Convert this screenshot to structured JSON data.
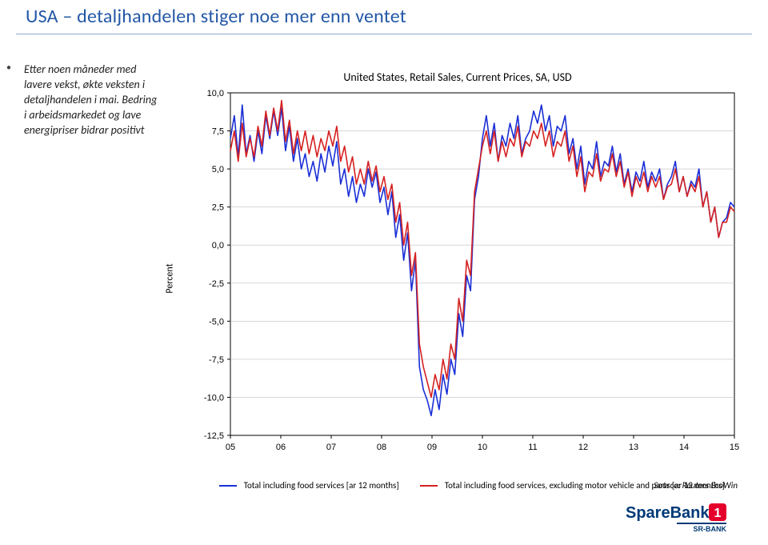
{
  "title": "USA – detaljhandelen stiger noe mer enn ventet",
  "sidebar_text": "Etter noen måneder med lavere vekst, økte veksten i detaljhandelen i mai. Bedring i arbeidsmarkedet og lave energipriser bidrar positivt",
  "chart": {
    "type": "line",
    "title": "United States, Retail Sales, Current Prices, SA, USD",
    "yaxis_label": "Percent",
    "ylim": [
      -12.5,
      10.0
    ],
    "ytick_step": 2.5,
    "yticks": [
      "10,0",
      "7,5",
      "5,0",
      "2,5",
      "0,0",
      "-2,5",
      "-5,0",
      "-7,5",
      "-10,0",
      "-12,5"
    ],
    "xticks": [
      "05",
      "06",
      "07",
      "08",
      "09",
      "10",
      "11",
      "12",
      "13",
      "14",
      "15"
    ],
    "background_color": "#ffffff",
    "grid_color": "#bfbfbf",
    "axis_color": "#000000",
    "tick_fontsize": 11,
    "title_fontsize": 14,
    "line_width": 1.6,
    "series": [
      {
        "name": "total",
        "label": "Total including food services [ar 12 months]",
        "color": "#1a2fd6",
        "values": [
          7.0,
          8.5,
          5.8,
          9.2,
          6.0,
          7.2,
          5.5,
          7.5,
          6.0,
          8.5,
          7.0,
          8.8,
          7.2,
          9.0,
          6.2,
          7.8,
          5.5,
          7.0,
          5.0,
          6.0,
          4.5,
          5.5,
          4.2,
          6.0,
          4.8,
          6.5,
          5.2,
          6.8,
          4.0,
          5.0,
          3.2,
          4.5,
          2.8,
          4.0,
          3.2,
          5.0,
          3.8,
          4.8,
          2.8,
          3.8,
          2.0,
          3.5,
          0.5,
          2.0,
          -1.0,
          0.8,
          -3.0,
          -1.0,
          -8.0,
          -9.5,
          -10.2,
          -11.2,
          -9.5,
          -10.8,
          -8.5,
          -9.8,
          -7.5,
          -8.5,
          -4.5,
          -6.0,
          -2.0,
          -3.0,
          3.0,
          4.5,
          7.0,
          8.5,
          6.5,
          8.0,
          5.5,
          7.2,
          6.5,
          8.0,
          7.0,
          8.5,
          6.0,
          7.0,
          7.5,
          8.8,
          8.0,
          9.2,
          7.5,
          8.5,
          6.5,
          7.8,
          7.5,
          8.5,
          6.0,
          7.0,
          5.0,
          6.5,
          4.0,
          5.5,
          5.0,
          6.8,
          4.5,
          5.5,
          5.2,
          6.5,
          4.8,
          6.0,
          4.0,
          5.0,
          3.5,
          4.8,
          4.2,
          5.5,
          3.8,
          4.8,
          4.2,
          5.0,
          3.0,
          4.0,
          4.5,
          5.5,
          3.5,
          4.5,
          3.2,
          4.2,
          3.8,
          5.0,
          2.5,
          3.5,
          1.5,
          2.5,
          0.5,
          1.5,
          1.8,
          2.8,
          2.5
        ]
      },
      {
        "name": "ex_motor",
        "label": "Total including food services, excluding motor vehicle and parts [ar 12 months]",
        "color": "#d62121",
        "values": [
          6.2,
          7.5,
          5.5,
          8.0,
          5.8,
          7.0,
          5.8,
          7.8,
          6.5,
          8.8,
          7.2,
          9.0,
          7.5,
          9.5,
          6.8,
          8.2,
          6.0,
          7.5,
          6.2,
          7.5,
          6.0,
          7.2,
          5.8,
          7.0,
          6.2,
          7.5,
          6.5,
          7.8,
          5.5,
          6.5,
          4.8,
          5.8,
          4.0,
          5.0,
          4.0,
          5.5,
          4.2,
          5.2,
          3.5,
          4.5,
          3.0,
          4.0,
          1.5,
          2.8,
          0.0,
          1.5,
          -2.0,
          -0.5,
          -6.5,
          -8.0,
          -9.0,
          -10.0,
          -8.5,
          -9.5,
          -7.5,
          -8.8,
          -6.5,
          -7.5,
          -3.5,
          -5.0,
          -1.0,
          -2.0,
          3.5,
          5.0,
          6.5,
          7.5,
          6.0,
          7.5,
          5.5,
          6.8,
          5.8,
          7.0,
          6.5,
          7.8,
          5.8,
          6.8,
          6.5,
          7.5,
          7.0,
          8.0,
          6.5,
          7.5,
          5.8,
          6.8,
          6.5,
          7.5,
          5.5,
          6.5,
          4.5,
          5.8,
          3.5,
          4.8,
          4.5,
          6.0,
          4.2,
          5.0,
          4.8,
          6.0,
          4.5,
          5.5,
          3.8,
          4.8,
          3.2,
          4.5,
          3.8,
          4.8,
          3.5,
          4.5,
          3.8,
          4.5,
          3.0,
          3.8,
          4.0,
          5.0,
          3.5,
          4.5,
          3.2,
          4.0,
          3.5,
          4.5,
          2.5,
          3.5,
          1.5,
          2.5,
          0.5,
          1.5,
          1.5,
          2.5,
          2.2
        ]
      }
    ],
    "source": "Source: Reuters EcoWin"
  },
  "logo": {
    "main": "SpareBank",
    "badge": "1",
    "sub": "SR-BANK",
    "badge_bg": "#e4002b",
    "badge_fg": "#ffffff",
    "text_color": "#003a78"
  }
}
